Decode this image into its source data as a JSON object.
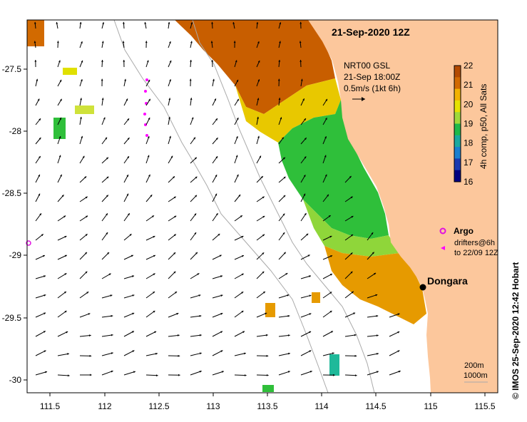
{
  "title": "21-Sep-2020 12Z",
  "product": {
    "line1": "NRT00 GSL",
    "line2": "21-Sep 18:00Z",
    "line3": "0.5m/s (1kt 6h)"
  },
  "colorbar": {
    "label": "4h comp, p50, All Sats",
    "ticks": [
      "22",
      "21",
      "20",
      "19",
      "18",
      "17",
      "16"
    ],
    "colors": [
      "#b34a00",
      "#d26a00",
      "#f2b200",
      "#e6e200",
      "#9fd93a",
      "#1fb94a",
      "#1aa9a0",
      "#1a7fd0",
      "#1a3ab0",
      "#000080"
    ]
  },
  "legend": {
    "argo_label": "Argo",
    "drifters_line1": "drifters@6h",
    "drifters_line2": "to 22/09 12Z",
    "argo_color": "#e010e0",
    "drifter_color": "#ff00ff"
  },
  "place": {
    "label": "Dongara"
  },
  "depth_labels": {
    "d1": "200m",
    "d2": "1000m"
  },
  "credit": "©  IMOS 25-Sep-2020 12:42 Hobart",
  "axes": {
    "x_ticks": [
      "111.5",
      "112",
      "112.5",
      "113",
      "113.5",
      "114",
      "114.5",
      "115",
      "115.5"
    ],
    "y_ticks": [
      "-27.5",
      "-28",
      "-28.5",
      "-29",
      "-29.5",
      "-30"
    ]
  },
  "colors": {
    "land": "#fcc79c",
    "ocean": "#ffffff",
    "contour": "#aaaaaa"
  }
}
